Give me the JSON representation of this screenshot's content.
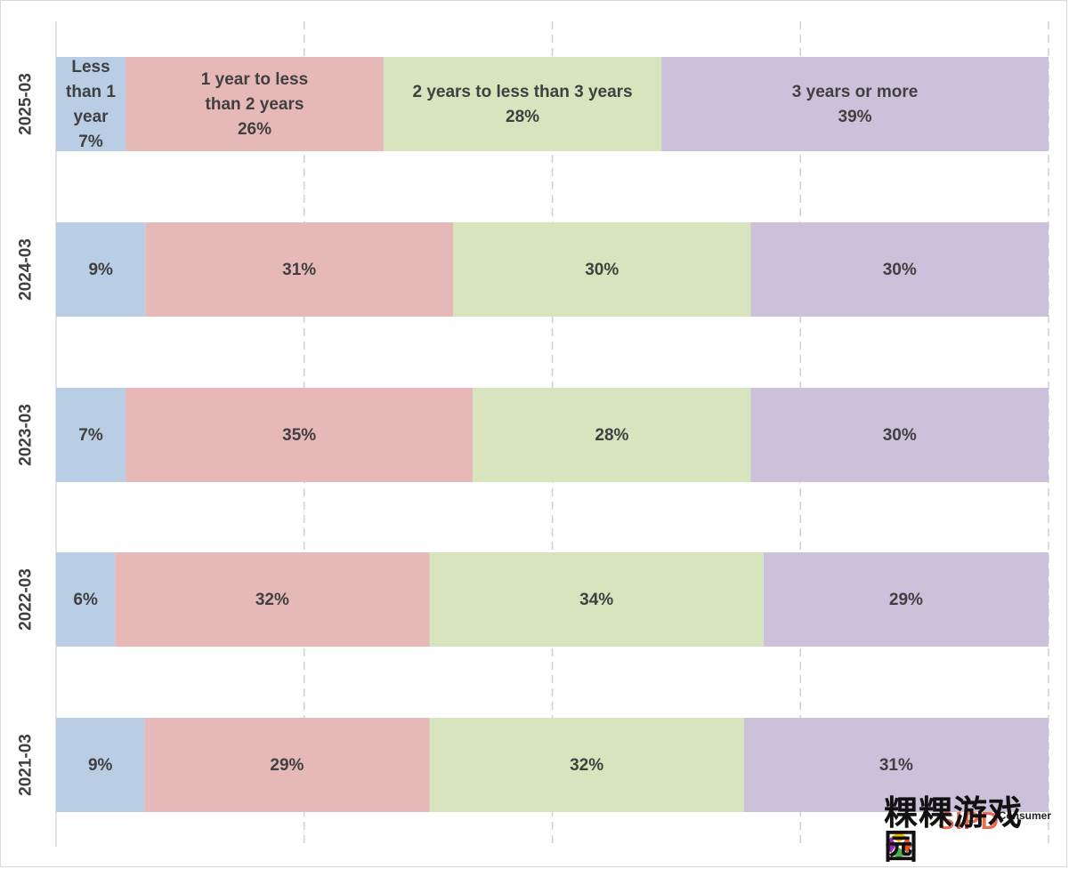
{
  "chart_data": {
    "type": "bar",
    "orientation": "horizontal",
    "stacked": true,
    "percent_stacked": true,
    "categories": [
      "2025-03",
      "2024-03",
      "2023-03",
      "2022-03",
      "2021-03"
    ],
    "series": [
      {
        "name": "Less than 1 year",
        "color": "#b9cde5",
        "values": [
          7,
          9,
          7,
          6,
          9
        ],
        "labels": [
          "7%",
          "9%",
          "7%",
          "6%",
          "9%"
        ]
      },
      {
        "name": "1 year to less than 2 years",
        "color": "#e6b9b8",
        "values": [
          26,
          31,
          35,
          32,
          29
        ],
        "labels": [
          "26%",
          "31%",
          "35%",
          "32%",
          "29%"
        ]
      },
      {
        "name": "2 years to less than 3 years",
        "color": "#d7e4bd",
        "values": [
          28,
          30,
          28,
          34,
          32
        ],
        "labels": [
          "28%",
          "30%",
          "28%",
          "34%",
          "32%"
        ]
      },
      {
        "name": "3 years or more",
        "color": "#ccc1da",
        "values": [
          39,
          30,
          30,
          29,
          31
        ],
        "labels": [
          "39%",
          "30%",
          "30%",
          "29%",
          "31%"
        ]
      }
    ],
    "first_row_shows_series_names": true,
    "xlim": [
      0,
      100
    ],
    "gridlines": "vertical-dashed",
    "legend": "none",
    "title": "",
    "xlabel": "",
    "ylabel": ""
  },
  "watermark": {
    "brand": "SIPD",
    "sub": "Consumer",
    "main": "粿粿游戏园"
  }
}
